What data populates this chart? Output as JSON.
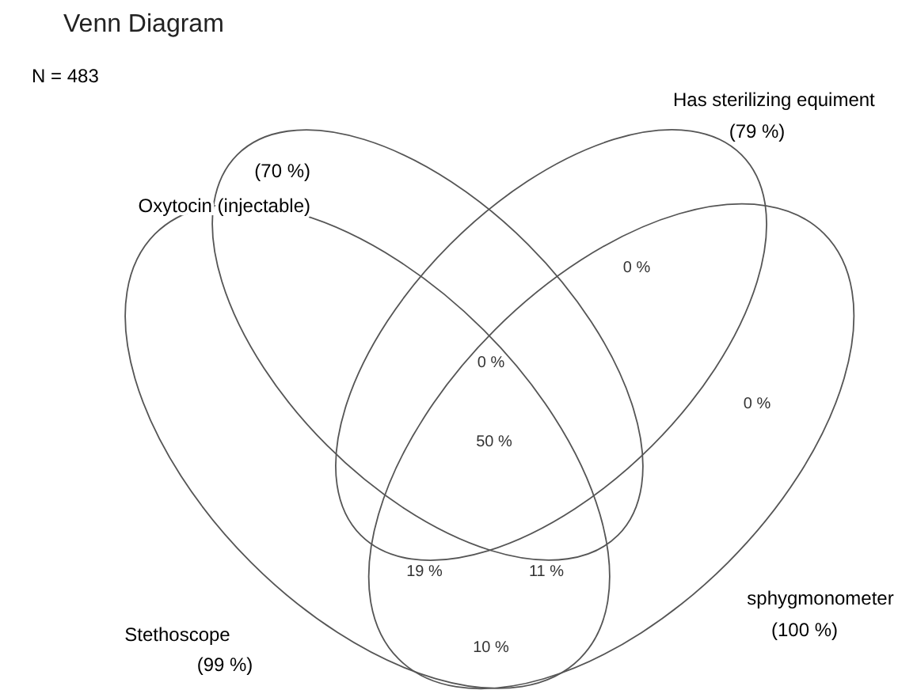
{
  "chart_data": {
    "type": "other",
    "title": "Venn Diagram",
    "subtitle": "N = 483",
    "categories": [
      "Stethoscope",
      "Oxytocin (injectable)",
      "Has sterilizing equiment",
      "sphygmonometer"
    ],
    "values": [
      99,
      70,
      79,
      100
    ],
    "value_labels": [
      "(99 %)",
      "(70 %)",
      "(79 %)",
      "(100 %)"
    ],
    "annotations": [
      "50 %",
      "0 %",
      "0 %",
      "0 %",
      "19 %",
      "11 %",
      "10 %"
    ]
  }
}
